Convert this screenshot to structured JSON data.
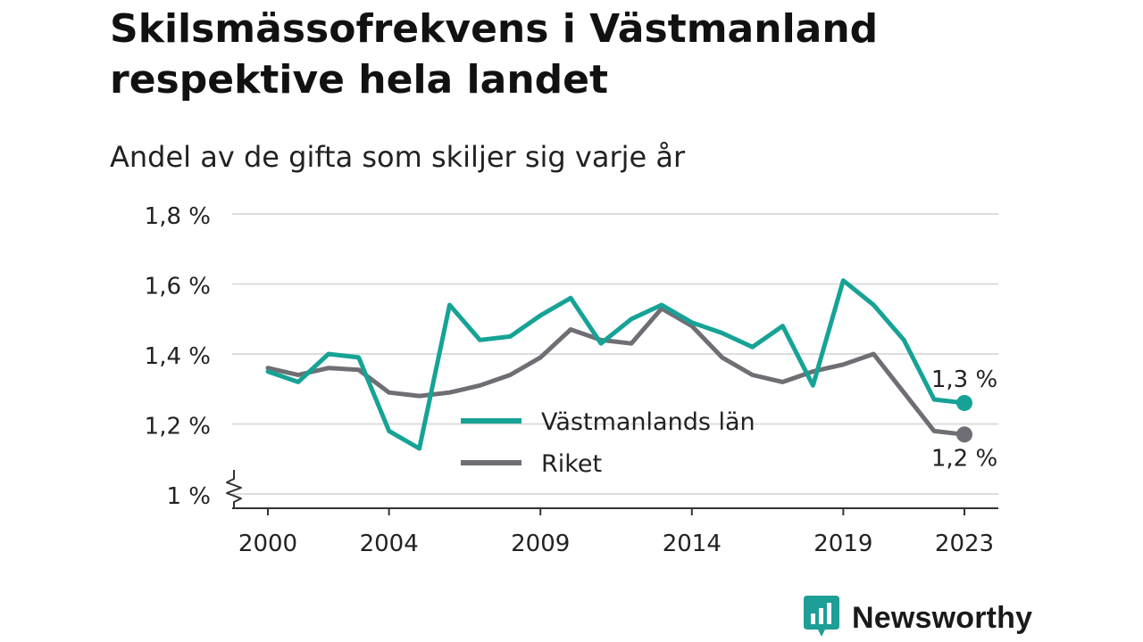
{
  "colors": {
    "vastmanland": "#16a396",
    "riket": "#6f6e74",
    "grid": "#dddddd",
    "axis": "#333333",
    "text": "#222222",
    "brand": "#1d9e96"
  },
  "logo": {
    "name": "Newsworthy",
    "icon": "newsworthy-chart-bubble-icon"
  },
  "chart_data": {
    "type": "line",
    "title": "Skilsmässofrekvens i Västmanland respektive hela landet",
    "subtitle": "Andel av de gifta som skiljer sig varje år",
    "xlabel": "",
    "ylabel": "",
    "x": [
      2000,
      2001,
      2002,
      2003,
      2004,
      2005,
      2006,
      2007,
      2008,
      2009,
      2010,
      2011,
      2012,
      2013,
      2014,
      2015,
      2016,
      2017,
      2018,
      2019,
      2020,
      2021,
      2022,
      2023
    ],
    "x_ticks": [
      "2000",
      "2004",
      "2009",
      "2014",
      "2019",
      "2023"
    ],
    "y_ticks": [
      1.0,
      1.2,
      1.4,
      1.6,
      1.8
    ],
    "y_tick_labels": [
      "1 %",
      "1,2 %",
      "1,4 %",
      "1,6 %",
      "1,8 %"
    ],
    "ylim": [
      1.0,
      1.8
    ],
    "y_axis_break": true,
    "grid": "horizontal",
    "legend_position": "center-bottom",
    "series": [
      {
        "name": "Västmanlands län",
        "values": [
          1.35,
          1.32,
          1.4,
          1.39,
          1.18,
          1.13,
          1.54,
          1.44,
          1.45,
          1.51,
          1.56,
          1.43,
          1.5,
          1.54,
          1.49,
          1.46,
          1.42,
          1.48,
          1.31,
          1.61,
          1.54,
          1.44,
          1.27,
          1.26
        ],
        "end_label": "1,3 %"
      },
      {
        "name": "Riket",
        "values": [
          1.36,
          1.34,
          1.36,
          1.355,
          1.29,
          1.28,
          1.29,
          1.31,
          1.34,
          1.39,
          1.47,
          1.44,
          1.43,
          1.53,
          1.48,
          1.39,
          1.34,
          1.32,
          1.35,
          1.37,
          1.4,
          1.29,
          1.18,
          1.17
        ],
        "end_label": "1,2 %"
      }
    ]
  }
}
